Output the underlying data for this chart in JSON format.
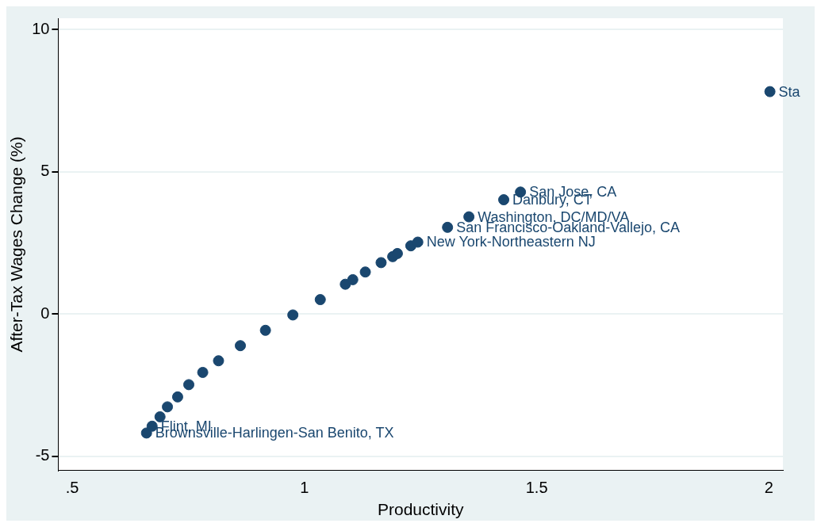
{
  "chart_data": {
    "type": "scatter",
    "xlabel": "Productivity",
    "ylabel": "After-Tax Wages Change (%)",
    "x": [
      0.66,
      0.672,
      0.689,
      0.705,
      0.727,
      0.751,
      0.781,
      0.815,
      0.862,
      0.916,
      0.975,
      1.034,
      1.088,
      1.104,
      1.131,
      1.165,
      1.19,
      1.2,
      1.229,
      1.244,
      1.308,
      1.354,
      1.429,
      1.465,
      2.002
    ],
    "series": [
      {
        "color": "#1a476f",
        "values": [
          -4.18,
          -3.94,
          -3.61,
          -3.26,
          -2.91,
          -2.48,
          -2.05,
          -1.64,
          -1.11,
          -0.57,
          -0.03,
          0.51,
          1.05,
          1.21,
          1.48,
          1.81,
          2.02,
          2.13,
          2.4,
          2.53,
          3.05,
          3.42,
          4.02,
          4.29,
          7.82
        ]
      }
    ],
    "xlim": [
      0.47,
      2.03
    ],
    "ylim": [
      -5.5,
      10.4
    ],
    "xticks": [
      {
        "value": 0.5,
        "label": ".5"
      },
      1,
      1.5,
      2
    ],
    "yticks": [
      -5,
      0,
      5,
      10
    ],
    "grid": "y",
    "legend": false,
    "marker": "circle",
    "annotations": [
      {
        "text": "Brownsville-Harlingen-San Benito, TX",
        "x": 0.66,
        "y": -4.18
      },
      {
        "text": "Flint, MI",
        "x": 0.672,
        "y": -3.94
      },
      {
        "text": "New York-Northeastern NJ",
        "x": 1.244,
        "y": 2.53
      },
      {
        "text": "San Francisco-Oakland-Vallejo, CA",
        "x": 1.308,
        "y": 3.05
      },
      {
        "text": "Washington, DC/MD/VA",
        "x": 1.354,
        "y": 3.42
      },
      {
        "text": "Danbury, CT",
        "x": 1.429,
        "y": 4.02
      },
      {
        "text": "San Jose, CA",
        "x": 1.465,
        "y": 4.29
      },
      {
        "text": "Sta",
        "x": 2.002,
        "y": 7.82
      }
    ]
  }
}
